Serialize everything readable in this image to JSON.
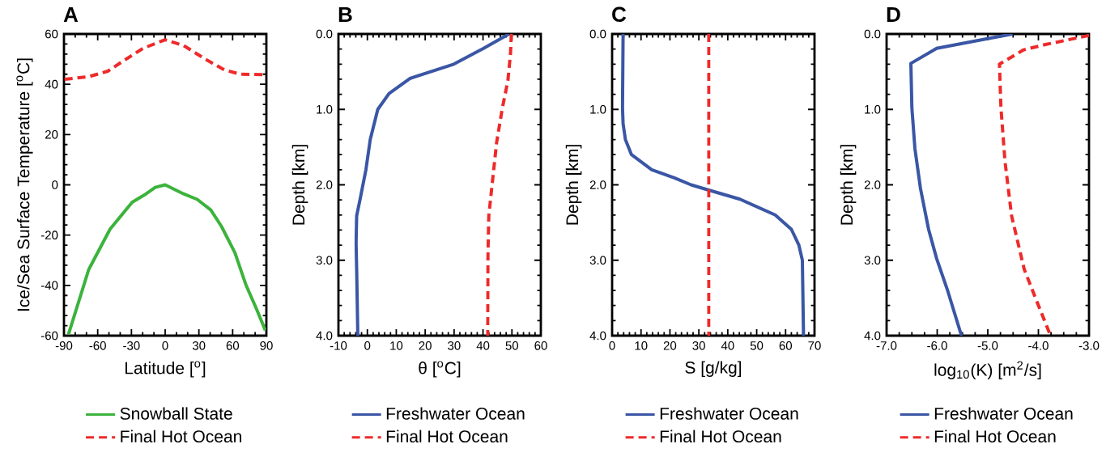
{
  "chart_data": [
    {
      "type": "line",
      "title": "A",
      "xlabel": "Latitude [$^{o}$]",
      "ylabel": "Ice/Sea Surface Temperature [$^{o}$C]",
      "xlim": [
        -90,
        90
      ],
      "ylim": [
        -60,
        60
      ],
      "xticks": [
        -90,
        -60,
        -30,
        0,
        30,
        60,
        90
      ],
      "yticks": [
        -60,
        -40,
        -20,
        0,
        20,
        40,
        60
      ],
      "legend": "bottom",
      "series": [
        {
          "name": "Snowball State",
          "color": "#3cb33c",
          "line_style": "solid",
          "x": [
            -86,
            -68,
            -49,
            -29.3,
            -17,
            -8.8,
            0,
            16.4,
            28.5,
            40.6,
            50,
            62,
            72,
            81.6,
            89
          ],
          "values": [
            -59.5,
            -33.7,
            -17.6,
            -6.9,
            -3.6,
            -1,
            0,
            -3.6,
            -5.8,
            -10,
            -16.5,
            -27,
            -40,
            -49.8,
            -57.8
          ]
        },
        {
          "name": "Final Hot Ocean",
          "color": "#ee2a2a",
          "line_style": "dashed",
          "x": [
            -89.5,
            -68,
            -51,
            -36.5,
            -19.6,
            0,
            16.4,
            35.7,
            52.6,
            67,
            90
          ],
          "values": [
            42,
            43,
            45.2,
            49.5,
            54.3,
            57.7,
            55.4,
            50,
            45.7,
            44,
            43.8
          ]
        }
      ]
    },
    {
      "type": "line",
      "title": "B",
      "xlabel": "θ [$^{o}$C]",
      "ylabel": "Depth [km]",
      "xlim": [
        -10,
        60
      ],
      "ylim": [
        4.0,
        0.0
      ],
      "xticks": [
        -10,
        0,
        10,
        20,
        30,
        40,
        50,
        60
      ],
      "yticks": [
        {
          "value": 0,
          "label": "0.0"
        },
        {
          "value": 1,
          "label": "1.0"
        },
        {
          "value": 2,
          "label": "2.0"
        },
        {
          "value": 3,
          "label": "3.0"
        },
        {
          "value": 4,
          "label": "4.0"
        }
      ],
      "legend": "bottom",
      "series": [
        {
          "name": "Freshwater Ocean",
          "color": "#3a56a5",
          "line_style": "solid",
          "x": [
            49,
            40.2,
            29.9,
            14.7,
            7.5,
            3.6,
            1,
            -0.5,
            -2.5,
            -3.7,
            -3.9,
            -3.7,
            -3.3
          ],
          "values": [
            0,
            0.19,
            0.4,
            0.59,
            0.79,
            1.0,
            1.4,
            1.8,
            2.19,
            2.41,
            2.77,
            3.12,
            4.0
          ]
        },
        {
          "name": "Final Hot Ocean",
          "color": "#ee2a2a",
          "line_style": "dashed",
          "x": [
            49.8,
            49.5,
            48.6,
            46.7,
            44.7,
            43,
            42,
            41.7,
            41.6
          ],
          "values": [
            0,
            0.26,
            0.62,
            0.98,
            1.44,
            2.05,
            2.41,
            2.94,
            4.0
          ]
        }
      ]
    },
    {
      "type": "line",
      "title": "C",
      "xlabel": "S [g/kg]",
      "ylabel": "Depth [km]",
      "xlim": [
        0,
        70
      ],
      "ylim": [
        4.0,
        0.0
      ],
      "xticks": [
        0,
        10,
        20,
        30,
        40,
        50,
        60,
        70
      ],
      "yticks": [
        {
          "value": 0,
          "label": "0.0"
        },
        {
          "value": 1,
          "label": "1.0"
        },
        {
          "value": 2,
          "label": "2.0"
        },
        {
          "value": 3,
          "label": "3.0"
        },
        {
          "value": 4,
          "label": "4.0"
        }
      ],
      "legend": "bottom",
      "series": [
        {
          "name": "Freshwater Ocean",
          "color": "#3a56a5",
          "line_style": "solid",
          "x": [
            3.8,
            3.6,
            3.8,
            4.6,
            6.7,
            13.7,
            21.7,
            27.3,
            33.4,
            44.2,
            56.4,
            62,
            64.6,
            65.8,
            66.2
          ],
          "values": [
            0,
            0.98,
            1.19,
            1.4,
            1.6,
            1.8,
            1.91,
            2.0,
            2.07,
            2.19,
            2.4,
            2.59,
            2.8,
            3.0,
            4.0
          ]
        },
        {
          "name": "Final Hot Ocean",
          "color": "#ee2a2a",
          "line_style": "dashed",
          "x": [
            33.4,
            33.4
          ],
          "values": [
            0,
            4.0
          ]
        }
      ]
    },
    {
      "type": "line",
      "title": "D",
      "xlabel": "log$_{10}$(K) [m$^{2}$/s]",
      "ylabel": "Depth [km]",
      "xlim": [
        -7.0,
        -3.0
      ],
      "ylim": [
        4.0,
        0.0
      ],
      "xticks": [
        {
          "value": -7,
          "label": "-7.0"
        },
        {
          "value": -6,
          "label": "-6.0"
        },
        {
          "value": -5,
          "label": "-5.0"
        },
        {
          "value": -4,
          "label": "-4.0"
        },
        {
          "value": -3,
          "label": "-3.0"
        }
      ],
      "yticks": [
        {
          "value": 0,
          "label": "0.0"
        },
        {
          "value": 1,
          "label": "1.0"
        },
        {
          "value": 2,
          "label": "2.0"
        },
        {
          "value": 3,
          "label": "3.0"
        },
        {
          "value": 4,
          "label": "4.0"
        }
      ],
      "legend": "bottom",
      "series": [
        {
          "name": "Freshwater Ocean",
          "color": "#3a56a5",
          "line_style": "solid",
          "x": [
            -4.51,
            -4.98,
            -6.01,
            -6.52,
            -6.5,
            -6.44,
            -6.33,
            -6.17,
            -6.01,
            -5.79,
            -5.52
          ],
          "values": [
            0,
            0.06,
            0.19,
            0.39,
            0.98,
            1.52,
            2.05,
            2.59,
            2.98,
            3.41,
            4.0
          ]
        },
        {
          "name": "Final Hot Ocean",
          "color": "#ee2a2a",
          "line_style": "dashed",
          "x": [
            -3.0,
            -3.86,
            -4.29,
            -4.77,
            -4.74,
            -4.66,
            -4.53,
            -4.28,
            -4.07,
            -3.76
          ],
          "values": [
            0.02,
            0.14,
            0.21,
            0.4,
            0.98,
            1.69,
            2.41,
            3.12,
            3.48,
            4.0
          ]
        }
      ]
    }
  ]
}
